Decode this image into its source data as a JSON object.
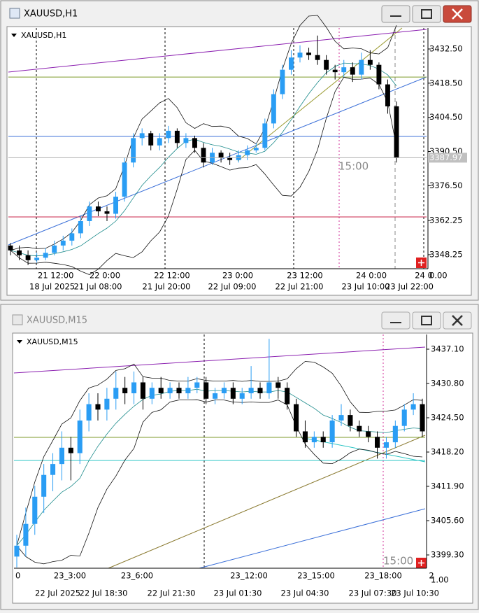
{
  "windows": [
    {
      "title": "XAUUSD,H1",
      "chart_label": "XAUUSD,H1",
      "annotation": "15:00",
      "sub_label": "0.00",
      "price_label": {
        "value": 3387.97,
        "label": "3387.97"
      },
      "ylim": [
        3342.5,
        3441.1
      ],
      "yticks": [
        {
          "value": 3432.5,
          "label": "3432.50"
        },
        {
          "value": 3418.5,
          "label": "3418.50"
        },
        {
          "value": 3404.5,
          "label": "3404.50"
        },
        {
          "value": 3390.5,
          "label": "3390.50"
        },
        {
          "value": 3376.5,
          "label": "3376.50"
        },
        3362.25,
        3348.25
      ],
      "top_time_labels": [
        "21 12:00",
        "22 0:00",
        "22 12:00",
        "23 0:00",
        "23 12:00",
        "24 0:00",
        "24 0"
      ],
      "time_labels": [
        "18 Jul 2025",
        "21 Jul 08:00",
        "21 Jul 20:00",
        "22 Jul 09:00",
        "22 Jul 21:00",
        "23 Jul 10:00",
        "23 Jul 22:00"
      ],
      "hlines": [
        {
          "value": 3363.7,
          "color": "#c8264a"
        },
        {
          "value": 3396.7,
          "color": "#3a6fd8"
        },
        {
          "value": 3421.0,
          "color": "#7c9a2a"
        }
      ],
      "bull_color": "#2a9df4",
      "bear_color": "#000000",
      "candles": [
        [
          3352,
          3353,
          3348,
          3350
        ],
        [
          3350,
          3352,
          3346,
          3348
        ],
        [
          3348,
          3350,
          3344,
          3346
        ],
        [
          3346,
          3349,
          3345,
          3347
        ],
        [
          3347,
          3351,
          3346,
          3349
        ],
        [
          3349,
          3354,
          3348,
          3352
        ],
        [
          3352,
          3356,
          3350,
          3354
        ],
        [
          3354,
          3359,
          3352,
          3357
        ],
        [
          3357,
          3364,
          3355,
          3362
        ],
        [
          3362,
          3370,
          3360,
          3368
        ],
        [
          3368,
          3370,
          3364,
          3366
        ],
        [
          3366,
          3368,
          3362,
          3365
        ],
        [
          3365,
          3374,
          3363,
          3372
        ],
        [
          3372,
          3388,
          3370,
          3386
        ],
        [
          3386,
          3398,
          3384,
          3396
        ],
        [
          3396,
          3400,
          3393,
          3398
        ],
        [
          3398,
          3399,
          3391,
          3393
        ],
        [
          3393,
          3398,
          3391,
          3396
        ],
        [
          3396,
          3401,
          3394,
          3399
        ],
        [
          3399,
          3400,
          3392,
          3394
        ],
        [
          3394,
          3398,
          3392,
          3396
        ],
        [
          3396,
          3397,
          3390,
          3392
        ],
        [
          3392,
          3394,
          3384,
          3386
        ],
        [
          3386,
          3392,
          3385,
          3390
        ],
        [
          3390,
          3391,
          3386,
          3388
        ],
        [
          3388,
          3390,
          3385,
          3387
        ],
        [
          3387,
          3391,
          3386,
          3389
        ],
        [
          3389,
          3393,
          3387,
          3391
        ],
        [
          3391,
          3394,
          3390,
          3392
        ],
        [
          3392,
          3404,
          3391,
          3402
        ],
        [
          3402,
          3416,
          3400,
          3414
        ],
        [
          3414,
          3426,
          3412,
          3424
        ],
        [
          3424,
          3432,
          3422,
          3429
        ],
        [
          3429,
          3434,
          3427,
          3431
        ],
        [
          3431,
          3433,
          3428,
          3430
        ],
        [
          3430,
          3438,
          3426,
          3428
        ],
        [
          3428,
          3430,
          3422,
          3424
        ],
        [
          3424,
          3426,
          3420,
          3423
        ],
        [
          3423,
          3428,
          3421,
          3425
        ],
        [
          3425,
          3427,
          3419,
          3422
        ],
        [
          3422,
          3431,
          3420,
          3428
        ],
        [
          3428,
          3432,
          3424,
          3426
        ],
        [
          3426,
          3427,
          3416,
          3418
        ],
        [
          3418,
          3420,
          3406,
          3409
        ],
        [
          3409,
          3411,
          3386,
          3388
        ]
      ]
    },
    {
      "title": "XAUUSD,M15",
      "chart_label": "XAUUSD,M15",
      "annotation": "15:00",
      "sub_label": "1.00",
      "ylim": [
        3396.86,
        3439.8
      ],
      "yticks": [
        {
          "value": 3437.1,
          "label": "3437.10"
        },
        {
          "value": 3430.8,
          "label": "3430.80"
        },
        {
          "value": 3424.5,
          "label": "3424.50"
        },
        {
          "value": 3418.2,
          "label": "3418.20"
        },
        {
          "value": 3411.9,
          "label": "3411.90"
        },
        {
          "value": 3405.6,
          "label": "3405.60"
        },
        {
          "value": 3399.3,
          "label": "3399.30"
        }
      ],
      "top_time_labels": [
        "0",
        "23_3:00",
        "23_6:00",
        "23_12:00",
        "23_15:00",
        "23_18:00",
        "2"
      ],
      "time_labels": [
        "22 Jul 2025",
        "22 Jul 18:30",
        "22 Jul 21:30",
        "23 Jul 01:30",
        "23 Jul 04:30",
        "23 Jul 07:30",
        "23 Jul 10:30"
      ],
      "hlines": [
        {
          "value": 3416.66,
          "color": "#2bc4c4"
        },
        {
          "value": 3420.9,
          "color": "#7c9a2a"
        }
      ],
      "bull_color": "#2a9df4",
      "bear_color": "#000000",
      "candles": [
        [
          3399,
          3403,
          3397,
          3401
        ],
        [
          3401,
          3408,
          3399,
          3405
        ],
        [
          3405,
          3412,
          3403,
          3410
        ],
        [
          3410,
          3416,
          3407,
          3414
        ],
        [
          3414,
          3418,
          3411,
          3416
        ],
        [
          3416,
          3422,
          3413,
          3419
        ],
        [
          3419,
          3421,
          3413,
          3418
        ],
        [
          3418,
          3426,
          3416,
          3424
        ],
        [
          3424,
          3429,
          3422,
          3427
        ],
        [
          3427,
          3429,
          3424,
          3426
        ],
        [
          3426,
          3430,
          3424,
          3428
        ],
        [
          3428,
          3433,
          3426,
          3430
        ],
        [
          3430,
          3432,
          3427,
          3429
        ],
        [
          3429,
          3433,
          3427,
          3431
        ],
        [
          3431,
          3432,
          3426,
          3428
        ],
        [
          3428,
          3431,
          3427,
          3430
        ],
        [
          3430,
          3432,
          3428,
          3429
        ],
        [
          3429,
          3431,
          3428,
          3430
        ],
        [
          3430,
          3431,
          3428,
          3429
        ],
        [
          3429,
          3432,
          3428,
          3430
        ],
        [
          3430,
          3432,
          3429,
          3431
        ],
        [
          3431,
          3432,
          3427,
          3428
        ],
        [
          3428,
          3430,
          3427,
          3429
        ],
        [
          3429,
          3431,
          3428,
          3430
        ],
        [
          3430,
          3431,
          3427,
          3428
        ],
        [
          3428,
          3430,
          3427,
          3429
        ],
        [
          3429,
          3434,
          3428,
          3430
        ],
        [
          3430,
          3431,
          3428,
          3429
        ],
        [
          3429,
          3439,
          3428,
          3431
        ],
        [
          3431,
          3432,
          3428,
          3430
        ],
        [
          3430,
          3431,
          3426,
          3427
        ],
        [
          3427,
          3428,
          3421,
          3422
        ],
        [
          3422,
          3424,
          3419,
          3420
        ],
        [
          3420,
          3422,
          3419,
          3421
        ],
        [
          3421,
          3422,
          3419,
          3420
        ],
        [
          3420,
          3425,
          3419,
          3424
        ],
        [
          3424,
          3427,
          3423,
          3425
        ],
        [
          3425,
          3426,
          3422,
          3423
        ],
        [
          3423,
          3424,
          3421,
          3422
        ],
        [
          3422,
          3423,
          3420,
          3421
        ],
        [
          3421,
          3422,
          3417,
          3419
        ],
        [
          3419,
          3421,
          3417,
          3420
        ],
        [
          3420,
          3424,
          3419,
          3423
        ],
        [
          3423,
          3427,
          3422,
          3426
        ],
        [
          3426,
          3429,
          3425,
          3427
        ],
        [
          3427,
          3428,
          3421,
          3422
        ]
      ]
    }
  ]
}
